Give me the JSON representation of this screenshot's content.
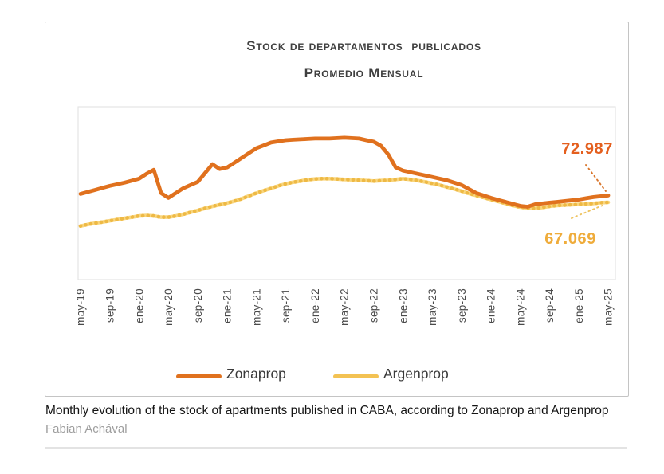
{
  "chart_data": {
    "type": "line",
    "title_line1": "Stock de departamentos  publicados",
    "title_line2": "Promedio Mensual",
    "x": [
      "may-19",
      "jun-19",
      "jul-19",
      "ago-19",
      "sep-19",
      "oct-19",
      "nov-19",
      "dic-19",
      "ene-20",
      "feb-20",
      "mar-20",
      "abr-20",
      "may-20",
      "jun-20",
      "jul-20",
      "ago-20",
      "sep-20",
      "oct-20",
      "nov-20",
      "dic-20",
      "ene-21",
      "feb-21",
      "mar-21",
      "abr-21",
      "may-21",
      "jun-21",
      "jul-21",
      "ago-21",
      "sep-21",
      "oct-21",
      "nov-21",
      "dic-21",
      "ene-22",
      "feb-22",
      "mar-22",
      "abr-22",
      "may-22",
      "jun-22",
      "jul-22",
      "ago-22",
      "sep-22",
      "oct-22",
      "nov-22",
      "dic-22",
      "ene-23",
      "feb-23",
      "mar-23",
      "abr-23",
      "may-23",
      "jun-23",
      "jul-23",
      "ago-23",
      "sep-23",
      "oct-23",
      "nov-23",
      "dic-23",
      "ene-24",
      "feb-24",
      "mar-24",
      "abr-24",
      "may-24",
      "jun-24",
      "jul-24",
      "ago-24",
      "sep-24",
      "oct-24",
      "nov-24",
      "dic-24",
      "ene-25",
      "feb-25",
      "mar-25",
      "abr-25",
      "may-25"
    ],
    "x_tick_labels": [
      "may-19",
      "sep-19",
      "ene-20",
      "may-20",
      "sep-20",
      "ene-21",
      "may-21",
      "sep-21",
      "ene-22",
      "may-22",
      "sep-22",
      "ene-23",
      "may-23",
      "sep-23",
      "ene-24",
      "may-24",
      "sep-24",
      "ene-25",
      "may-25"
    ],
    "tick_every": 4,
    "ylim": [
      0,
      150000
    ],
    "grid": false,
    "legend_position": "bottom",
    "series": [
      {
        "name": "Zonaprop",
        "color": "#E0711E",
        "style": "solid",
        "end_label": "72.987",
        "end_value": 72987,
        "values": [
          74400,
          76100,
          77850,
          79600,
          81350,
          82750,
          84100,
          85850,
          87600,
          91800,
          95250,
          75100,
          70900,
          75100,
          79250,
          82050,
          84800,
          92500,
          100150,
          95950,
          97350,
          101500,
          105700,
          109900,
          114050,
          116500,
          118950,
          120000,
          121000,
          121400,
          121700,
          122050,
          122400,
          122400,
          122400,
          122750,
          123100,
          122750,
          122400,
          121000,
          119650,
          116150,
          108500,
          97350,
          94550,
          93200,
          91800,
          90400,
          89000,
          87600,
          86200,
          84100,
          82050,
          78550,
          75100,
          73000,
          70900,
          69150,
          67400,
          65700,
          63950,
          63250,
          65350,
          66050,
          66750,
          67400,
          68100,
          68800,
          69500,
          70550,
          71600,
          72300,
          72987
        ]
      },
      {
        "name": "Argenprop",
        "color": "#EEB945",
        "color_light": "#F9D67E",
        "style": "beaded",
        "end_label": "67.069",
        "end_value": 67069,
        "values": [
          46500,
          47900,
          49000,
          50000,
          51100,
          52100,
          53200,
          54200,
          55250,
          55600,
          55250,
          54200,
          54200,
          55250,
          56650,
          58400,
          60100,
          61850,
          63600,
          65000,
          66400,
          68100,
          70200,
          72650,
          75100,
          77200,
          79250,
          81350,
          83100,
          84500,
          85500,
          86600,
          87300,
          87600,
          87600,
          87300,
          86900,
          86600,
          86200,
          85900,
          85500,
          85900,
          86200,
          86900,
          87600,
          86900,
          85900,
          84800,
          83450,
          82050,
          80300,
          78600,
          76800,
          74750,
          73000,
          71250,
          69500,
          67800,
          66050,
          64300,
          62900,
          62200,
          61850,
          62550,
          63600,
          64300,
          64650,
          65000,
          65350,
          65700,
          66050,
          66750,
          67069
        ]
      }
    ]
  },
  "caption": {
    "text": "Monthly evolution of the stock of apartments published in CABA, according to Zonaprop and Argenprop",
    "author": "Fabian Achával"
  }
}
